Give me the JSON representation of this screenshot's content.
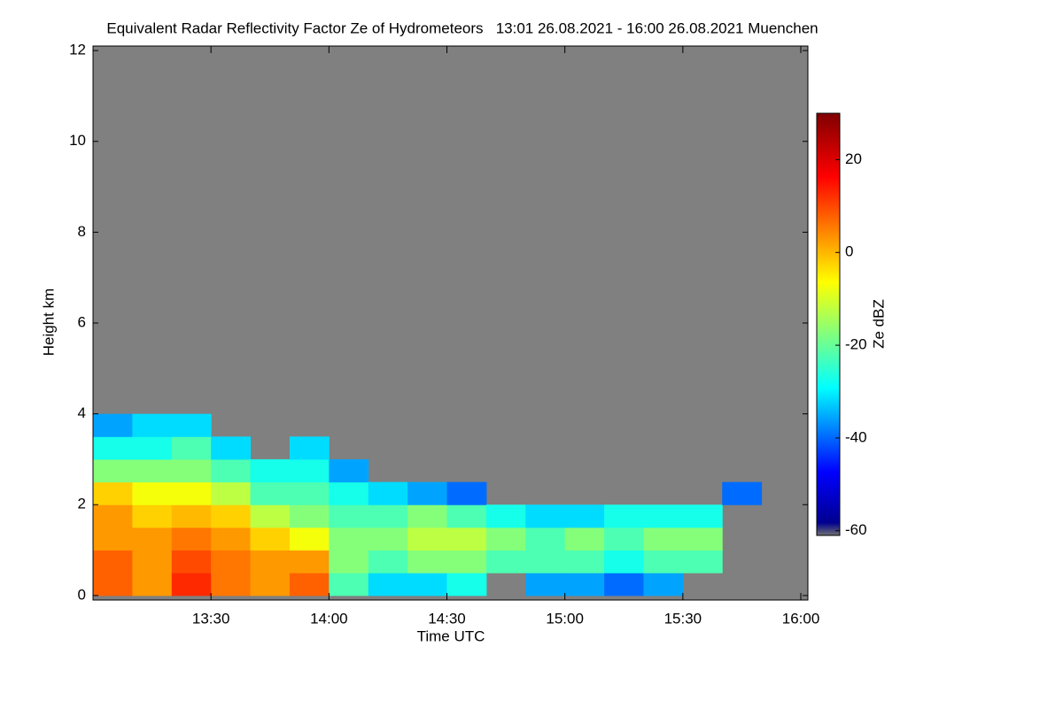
{
  "chart_data": {
    "type": "heatmap",
    "title": "Equivalent Radar Reflectivity Factor Ze of Hydrometeors   13:01 26.08.2021 - 16:00 26.08.2021 Muenchen",
    "xlabel": "Time UTC",
    "ylabel": "Height km",
    "colorbar_label": "Ze dBZ",
    "background": "#808080",
    "xlim": [
      13.0,
      16.03
    ],
    "ylim": [
      -0.1,
      12.1
    ],
    "xticks": [
      {
        "value": 13.5,
        "label": "13:30"
      },
      {
        "value": 14.0,
        "label": "14:00"
      },
      {
        "value": 14.5,
        "label": "14:30"
      },
      {
        "value": 15.0,
        "label": "15:00"
      },
      {
        "value": 15.5,
        "label": "15:30"
      },
      {
        "value": 16.0,
        "label": "16:00"
      }
    ],
    "yticks": [
      0,
      2,
      4,
      6,
      8,
      10,
      12
    ],
    "clim": [
      -61,
      30
    ],
    "cticks": [
      -60,
      -40,
      -20,
      0,
      20
    ],
    "xbins": [
      13.0,
      13.1667,
      13.3333,
      13.5,
      13.6667,
      13.8333,
      14.0,
      14.1667,
      14.3333,
      14.5,
      14.6667,
      14.8333,
      15.0,
      15.1667,
      15.3333,
      15.5,
      15.6667,
      15.8333,
      16.0
    ],
    "ybins": [
      0,
      0.5,
      1,
      1.5,
      2,
      2.5,
      3,
      3.5,
      4
    ],
    "values": [
      [
        10,
        10,
        5,
        5,
        0,
        -15,
        -25,
        -35
      ],
      [
        5,
        5,
        5,
        0,
        -5,
        -15,
        -25,
        -30
      ],
      [
        15,
        12,
        8,
        2,
        -5,
        -15,
        -20,
        -30
      ],
      [
        8,
        8,
        5,
        0,
        -10,
        -20,
        -30,
        null
      ],
      [
        5,
        5,
        0,
        -10,
        -20,
        -25,
        null,
        null
      ],
      [
        10,
        5,
        -5,
        -15,
        -20,
        -25,
        -30,
        null
      ],
      [
        -20,
        -15,
        -15,
        -20,
        -25,
        -35,
        null,
        null
      ],
      [
        -30,
        -20,
        -15,
        -20,
        -30,
        null,
        null,
        null
      ],
      [
        -30,
        -15,
        -10,
        -15,
        -35,
        null,
        null,
        null
      ],
      [
        -25,
        -15,
        -10,
        -20,
        -40,
        null,
        null,
        null
      ],
      [
        null,
        -20,
        -15,
        -25,
        null,
        null,
        null,
        null
      ],
      [
        -35,
        -20,
        -20,
        -30,
        null,
        null,
        null,
        null
      ],
      [
        -35,
        -20,
        -15,
        -30,
        null,
        null,
        null,
        null
      ],
      [
        -40,
        -25,
        -20,
        -25,
        null,
        null,
        null,
        null
      ],
      [
        -35,
        -20,
        -15,
        -25,
        null,
        null,
        null,
        null
      ],
      [
        null,
        -20,
        -15,
        -25,
        null,
        null,
        null,
        null
      ],
      [
        null,
        null,
        null,
        null,
        -40,
        null,
        null,
        null
      ],
      [
        null,
        null,
        null,
        null,
        null,
        null,
        null,
        null
      ]
    ]
  }
}
